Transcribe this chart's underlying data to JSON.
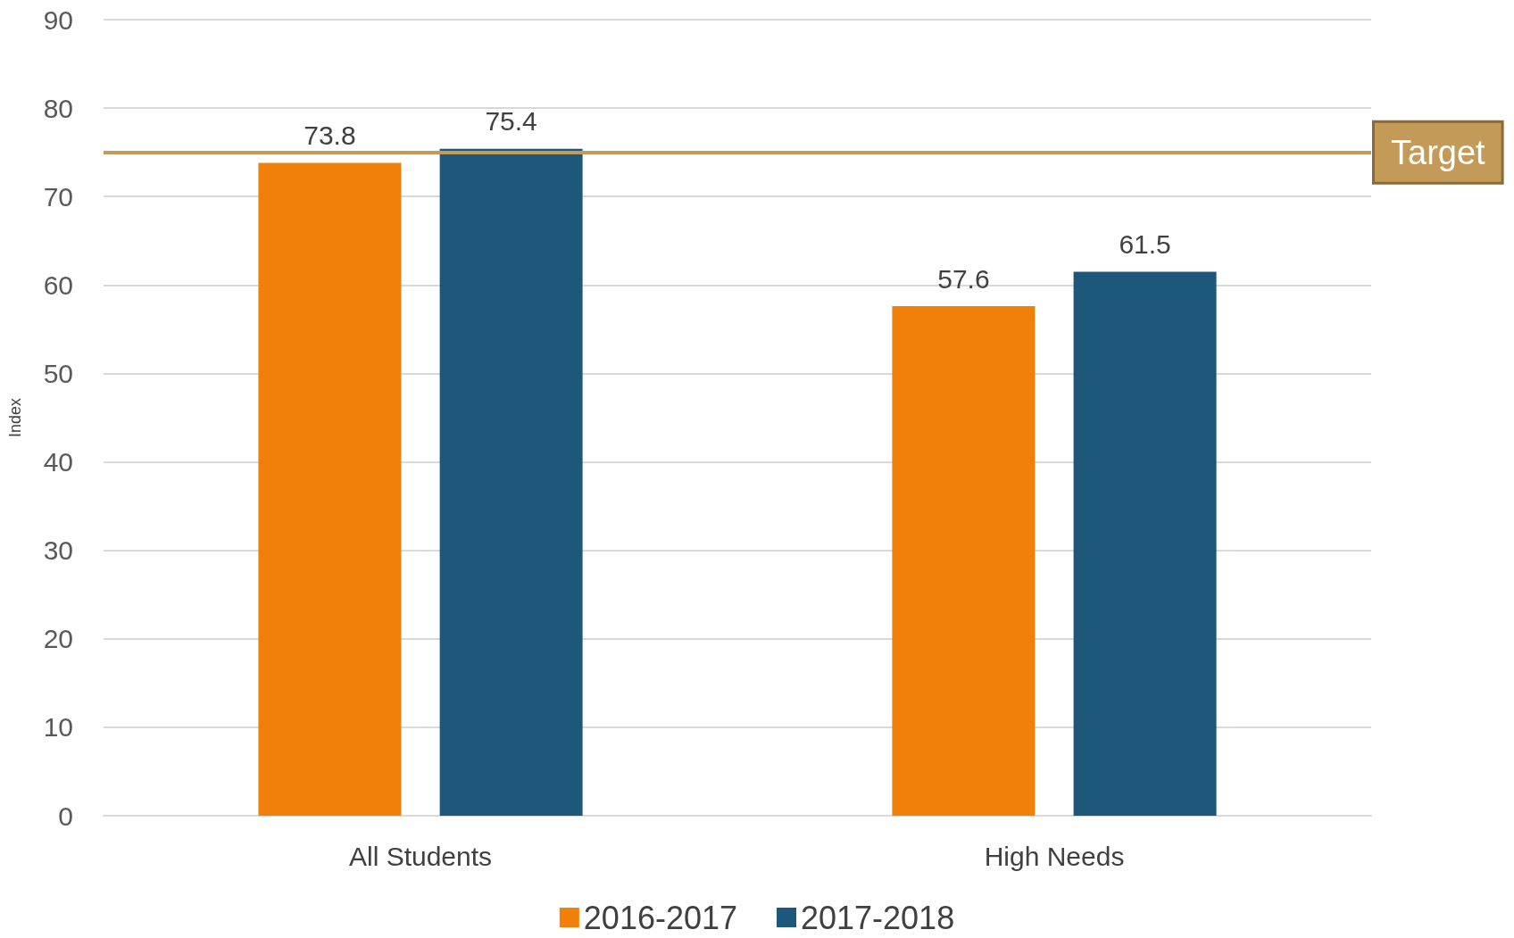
{
  "chart_data": {
    "type": "bar",
    "ylabel": "Index",
    "categories": [
      "All Students",
      "High Needs"
    ],
    "series": [
      {
        "name": "2016-2017",
        "color": "#f0800a",
        "values": [
          73.8,
          57.6
        ]
      },
      {
        "name": "2017-2018",
        "color": "#1d577a",
        "values": [
          75.4,
          61.5
        ]
      }
    ],
    "ylim": [
      0,
      90
    ],
    "yticks": [
      0,
      10,
      20,
      30,
      40,
      50,
      60,
      70,
      80,
      90
    ],
    "grid": "y",
    "legend": "bottom",
    "data_labels": true,
    "ref_lines": [
      {
        "axis": "y",
        "value": 75,
        "label": "Target",
        "color": "#c49a58"
      }
    ]
  }
}
